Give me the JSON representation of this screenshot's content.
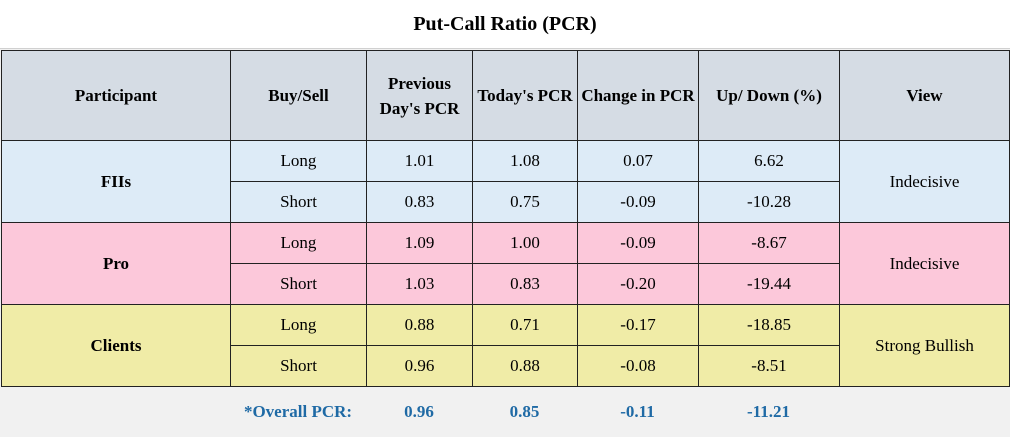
{
  "title": "Put-Call Ratio (PCR)",
  "headers": {
    "participant": "Participant",
    "buy_sell": "Buy/Sell",
    "prev_pcr": "Previous Day's PCR",
    "today_pcr": "Today's PCR",
    "change_pcr": "Change in PCR",
    "up_down": "Up/ Down (%)",
    "view": "View"
  },
  "groups": [
    {
      "participant": "FIIs",
      "view": "Indecisive",
      "rows": [
        {
          "side": "Long",
          "prev": "1.01",
          "today": "1.08",
          "change": "0.07",
          "updown": "6.62"
        },
        {
          "side": "Short",
          "prev": "0.83",
          "today": "0.75",
          "change": "-0.09",
          "updown": "-10.28"
        }
      ]
    },
    {
      "participant": "Pro",
      "view": "Indecisive",
      "rows": [
        {
          "side": "Long",
          "prev": "1.09",
          "today": "1.00",
          "change": "-0.09",
          "updown": "-8.67"
        },
        {
          "side": "Short",
          "prev": "1.03",
          "today": "0.83",
          "change": "-0.20",
          "updown": "-19.44"
        }
      ]
    },
    {
      "participant": "Clients",
      "view": "Strong Bullish",
      "rows": [
        {
          "side": "Long",
          "prev": "0.88",
          "today": "0.71",
          "change": "-0.17",
          "updown": "-18.85"
        },
        {
          "side": "Short",
          "prev": "0.96",
          "today": "0.88",
          "change": "-0.08",
          "updown": "-8.51"
        }
      ]
    }
  ],
  "overall": {
    "label": "*Overall PCR:",
    "prev": "0.96",
    "today": "0.85",
    "change": "-0.11",
    "updown": "-11.21"
  },
  "colors": {
    "header_bg": "#d5dce4",
    "fii_bg": "#ddebf7",
    "pro_bg": "#fcc8da",
    "clients_bg": "#f0eca7",
    "overall_text": "#1f6aa5"
  }
}
